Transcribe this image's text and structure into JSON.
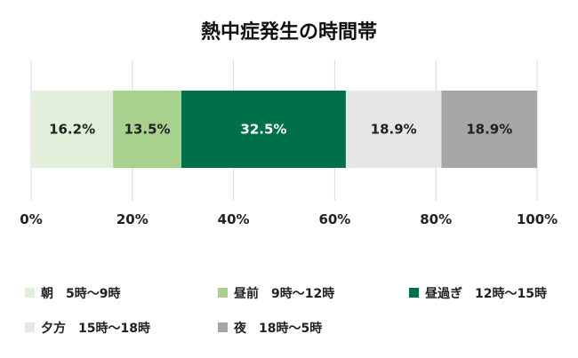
{
  "chart_data": {
    "type": "bar",
    "orientation": "horizontal-stacked-100",
    "title": "熱中症発生の時間帯",
    "xlim": [
      0,
      100
    ],
    "x_ticks": [
      "0%",
      "20%",
      "40%",
      "60%",
      "80%",
      "100%"
    ],
    "x_tick_values": [
      0,
      20,
      40,
      60,
      80,
      100
    ],
    "grid": true,
    "legend_position": "bottom",
    "series": [
      {
        "name": "朝　5時～9時",
        "value": 16.2,
        "label": "16.2%",
        "color": "#e2efda",
        "label_color": "#222222"
      },
      {
        "name": "昼前　9時～12時",
        "value": 13.5,
        "label": "13.5%",
        "color": "#a9d18e",
        "label_color": "#222222"
      },
      {
        "name": "昼過ぎ　12時～15時",
        "value": 32.5,
        "label": "32.5%",
        "color": "#00704a",
        "label_color": "#ffffff"
      },
      {
        "name": "夕方　15時～18時",
        "value": 18.9,
        "label": "18.9%",
        "color": "#e7e6e6",
        "label_color": "#222222"
      },
      {
        "name": "夜　18時～5時",
        "value": 18.9,
        "label": "18.9%",
        "color": "#a6a6a6",
        "label_color": "#222222"
      }
    ]
  }
}
